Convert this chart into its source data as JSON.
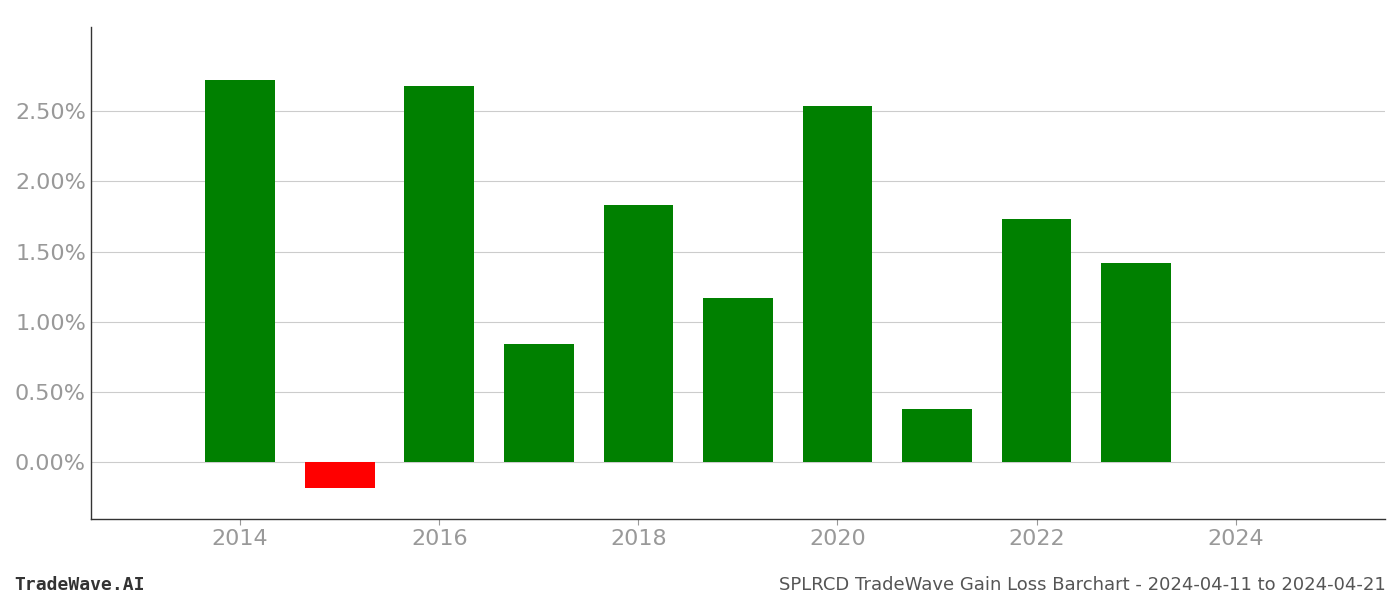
{
  "years": [
    2014,
    2015,
    2016,
    2017,
    2018,
    2019,
    2020,
    2021,
    2022,
    2023
  ],
  "values": [
    0.0272,
    -0.0018,
    0.0268,
    0.0084,
    0.0183,
    0.0117,
    0.0254,
    0.0038,
    0.0173,
    0.0142
  ],
  "colors": [
    "#008000",
    "#ff0000",
    "#008000",
    "#008000",
    "#008000",
    "#008000",
    "#008000",
    "#008000",
    "#008000",
    "#008000"
  ],
  "footer_left": "TradeWave.AI",
  "footer_right": "SPLRCD TradeWave Gain Loss Barchart - 2024-04-11 to 2024-04-21",
  "background_color": "#ffffff",
  "grid_color": "#cccccc",
  "bar_width": 0.7,
  "ylim_min": -0.004,
  "ylim_max": 0.031,
  "xlim_min": 2012.5,
  "xlim_max": 2025.5,
  "yticks": [
    0.0,
    0.005,
    0.01,
    0.015,
    0.02,
    0.025
  ],
  "xticks": [
    2014,
    2016,
    2018,
    2020,
    2022,
    2024
  ],
  "tick_label_color": "#999999",
  "tick_label_fontsize": 16,
  "footer_fontsize": 13,
  "spine_color": "#333333"
}
